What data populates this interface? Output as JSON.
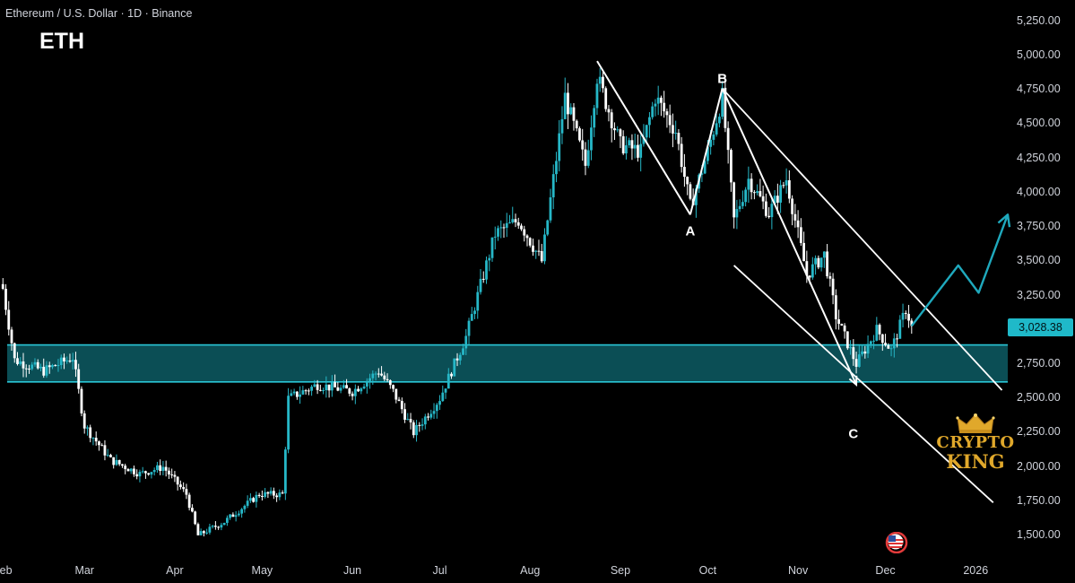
{
  "header": {
    "title": "Ethereum / U.S. Dollar · 1D · Binance",
    "ticker": "ETH"
  },
  "chart_data": {
    "type": "candlestick",
    "title": "Ethereum / U.S. Dollar · 1D · Binance",
    "symbol": "ETH",
    "exchange": "Binance",
    "interval": "1D",
    "y_ticks": [
      "5,250.00",
      "5,000.00",
      "4,750.00",
      "4,500.00",
      "4,250.00",
      "4,000.00",
      "3,750.00",
      "3,500.00",
      "3,250.00",
      "2,750.00",
      "2,500.00",
      "2,250.00",
      "2,000.00",
      "1,750.00",
      "1,500.00"
    ],
    "y_range": [
      1400,
      5350
    ],
    "x_ticks": [
      "Feb",
      "Mar",
      "Apr",
      "May",
      "Jun",
      "Jul",
      "Aug",
      "Sep",
      "Oct",
      "Nov",
      "Dec",
      "2026"
    ],
    "x_range": [
      "2025-01-31",
      "2026-01-12"
    ],
    "last_price": "3,028.38",
    "close_path": [
      [
        "2025-02-01",
        3300
      ],
      [
        "2025-02-05",
        2780
      ],
      [
        "2025-02-15",
        2700
      ],
      [
        "2025-02-25",
        2800
      ],
      [
        "2025-03-01",
        2300
      ],
      [
        "2025-03-10",
        2050
      ],
      [
        "2025-03-20",
        1950
      ],
      [
        "2025-03-28",
        2000
      ],
      [
        "2025-04-05",
        1800
      ],
      [
        "2025-04-09",
        1500
      ],
      [
        "2025-04-18",
        1600
      ],
      [
        "2025-04-30",
        1800
      ],
      [
        "2025-05-08",
        1800
      ],
      [
        "2025-05-10",
        2500
      ],
      [
        "2025-05-20",
        2600
      ],
      [
        "2025-06-01",
        2550
      ],
      [
        "2025-06-10",
        2700
      ],
      [
        "2025-06-15",
        2550
      ],
      [
        "2025-06-22",
        2250
      ],
      [
        "2025-07-01",
        2500
      ],
      [
        "2025-07-10",
        2950
      ],
      [
        "2025-07-20",
        3700
      ],
      [
        "2025-07-28",
        3800
      ],
      [
        "2025-08-05",
        3500
      ],
      [
        "2025-08-13",
        4700
      ],
      [
        "2025-08-20",
        4200
      ],
      [
        "2025-08-24",
        4850
      ],
      [
        "2025-09-01",
        4350
      ],
      [
        "2025-09-08",
        4300
      ],
      [
        "2025-09-13",
        4700
      ],
      [
        "2025-09-20",
        4450
      ],
      [
        "2025-09-25",
        3900
      ],
      [
        "2025-10-01",
        4300
      ],
      [
        "2025-10-06",
        4700
      ],
      [
        "2025-10-10",
        3800
      ],
      [
        "2025-10-15",
        4100
      ],
      [
        "2025-10-22",
        3850
      ],
      [
        "2025-10-28",
        4100
      ],
      [
        "2025-11-04",
        3400
      ],
      [
        "2025-11-10",
        3550
      ],
      [
        "2025-11-14",
        3100
      ],
      [
        "2025-11-21",
        2750
      ],
      [
        "2025-11-28",
        3000
      ],
      [
        "2025-12-03",
        2850
      ],
      [
        "2025-12-08",
        3150
      ],
      [
        "2025-12-10",
        3028
      ]
    ],
    "support_zone": [
      2620,
      2890
    ],
    "wave_labels": [
      {
        "label": "A",
        "date": "2025-09-25",
        "price": 3720
      },
      {
        "label": "B",
        "date": "2025-10-06",
        "price": 4830
      },
      {
        "label": "C",
        "date": "2025-11-20",
        "price": 2240
      }
    ],
    "projection": [
      [
        "2025-12-10",
        3028
      ],
      [
        "2025-12-26",
        3470
      ],
      [
        "2026-01-02",
        3270
      ],
      [
        "2026-01-12",
        3840
      ]
    ],
    "channel_upper": [
      [
        "2025-10-06",
        4760
      ],
      [
        "2026-01-10",
        2560
      ]
    ],
    "channel_lower": [
      [
        "2025-10-10",
        3470
      ],
      [
        "2026-01-07",
        1740
      ]
    ],
    "abc_lines": [
      [
        [
          "2025-08-24",
          4960
        ],
        [
          "2025-09-25",
          3840
        ]
      ],
      [
        [
          "2025-09-25",
          3840
        ],
        [
          "2025-10-06",
          4760
        ]
      ],
      [
        [
          "2025-10-06",
          4760
        ],
        [
          "2025-11-21",
          2600
        ]
      ]
    ]
  },
  "colors": {
    "bull": "#26b7c7",
    "bear": "#ffffff",
    "zone": "#0d5c64",
    "zone_border": "#2ac6d6",
    "projection": "#1fa9bd",
    "price_tag": "#1fb9c9"
  },
  "branding": {
    "line1": "CRYPTO",
    "line2": "KING"
  },
  "icons": {
    "flag": "us-flag-icon",
    "crown": "crown-icon"
  }
}
